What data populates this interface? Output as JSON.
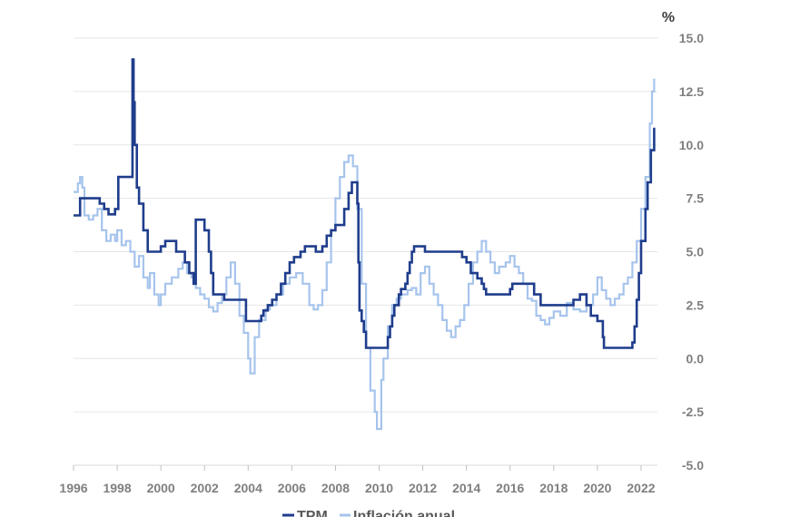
{
  "chart_data": {
    "type": "line",
    "y_unit": "%",
    "xlim": [
      1996,
      2022.75
    ],
    "ylim": [
      -5,
      15
    ],
    "x_ticks": [
      "1996",
      "1998",
      "2000",
      "2002",
      "2004",
      "2006",
      "2008",
      "2010",
      "2012",
      "2014",
      "2016",
      "2018",
      "2020",
      "2022"
    ],
    "y_ticks": [
      "15.0",
      "12.5",
      "10.0",
      "7.5",
      "5.0",
      "2.5",
      "0.0",
      "-2.5",
      "-5.0"
    ],
    "grid": "horizontal",
    "legend_position": "bottom",
    "series": [
      {
        "name": "TPM",
        "color": "#1f3d8c",
        "step": true,
        "points": [
          [
            1996.0,
            6.7
          ],
          [
            1996.3,
            7.5
          ],
          [
            1997.0,
            7.5
          ],
          [
            1997.2,
            7.25
          ],
          [
            1997.4,
            7.0
          ],
          [
            1997.6,
            6.75
          ],
          [
            1997.9,
            7.0
          ],
          [
            1998.05,
            8.5
          ],
          [
            1998.7,
            14.0
          ],
          [
            1998.75,
            12.0
          ],
          [
            1998.8,
            10.0
          ],
          [
            1998.9,
            8.0
          ],
          [
            1999.0,
            7.25
          ],
          [
            1999.2,
            6.0
          ],
          [
            1999.4,
            5.0
          ],
          [
            1999.6,
            5.0
          ],
          [
            2000.0,
            5.25
          ],
          [
            2000.2,
            5.5
          ],
          [
            2000.7,
            5.0
          ],
          [
            2001.1,
            4.5
          ],
          [
            2001.3,
            4.0
          ],
          [
            2001.5,
            3.5
          ],
          [
            2001.6,
            6.5
          ],
          [
            2002.0,
            6.0
          ],
          [
            2002.2,
            5.0
          ],
          [
            2002.3,
            4.0
          ],
          [
            2002.4,
            3.0
          ],
          [
            2002.6,
            3.0
          ],
          [
            2002.9,
            2.75
          ],
          [
            2003.9,
            1.75
          ],
          [
            2004.6,
            2.0
          ],
          [
            2004.7,
            2.25
          ],
          [
            2004.9,
            2.5
          ],
          [
            2005.1,
            2.75
          ],
          [
            2005.3,
            3.0
          ],
          [
            2005.5,
            3.5
          ],
          [
            2005.7,
            4.0
          ],
          [
            2005.9,
            4.5
          ],
          [
            2006.1,
            4.75
          ],
          [
            2006.4,
            5.0
          ],
          [
            2006.6,
            5.25
          ],
          [
            2007.1,
            5.0
          ],
          [
            2007.4,
            5.25
          ],
          [
            2007.6,
            5.75
          ],
          [
            2007.8,
            6.0
          ],
          [
            2008.0,
            6.25
          ],
          [
            2008.4,
            7.0
          ],
          [
            2008.6,
            7.75
          ],
          [
            2008.75,
            8.25
          ],
          [
            2009.0,
            7.25
          ],
          [
            2009.05,
            4.5
          ],
          [
            2009.1,
            2.25
          ],
          [
            2009.2,
            1.75
          ],
          [
            2009.3,
            1.25
          ],
          [
            2009.4,
            0.5
          ],
          [
            2010.4,
            1.0
          ],
          [
            2010.5,
            1.5
          ],
          [
            2010.6,
            2.0
          ],
          [
            2010.7,
            2.5
          ],
          [
            2010.9,
            3.0
          ],
          [
            2011.0,
            3.25
          ],
          [
            2011.2,
            3.5
          ],
          [
            2011.3,
            4.0
          ],
          [
            2011.4,
            4.5
          ],
          [
            2011.5,
            5.0
          ],
          [
            2011.6,
            5.25
          ],
          [
            2012.1,
            5.0
          ],
          [
            2013.8,
            4.75
          ],
          [
            2014.0,
            4.5
          ],
          [
            2014.2,
            4.0
          ],
          [
            2014.5,
            3.75
          ],
          [
            2014.7,
            3.5
          ],
          [
            2014.8,
            3.25
          ],
          [
            2014.9,
            3.0
          ],
          [
            2016.0,
            3.25
          ],
          [
            2016.1,
            3.5
          ],
          [
            2017.1,
            3.0
          ],
          [
            2017.4,
            2.5
          ],
          [
            2018.9,
            2.75
          ],
          [
            2019.2,
            3.0
          ],
          [
            2019.5,
            2.5
          ],
          [
            2019.7,
            2.0
          ],
          [
            2020.0,
            1.75
          ],
          [
            2020.25,
            1.0
          ],
          [
            2020.3,
            0.5
          ],
          [
            2021.6,
            0.75
          ],
          [
            2021.7,
            1.5
          ],
          [
            2021.8,
            2.75
          ],
          [
            2021.9,
            4.0
          ],
          [
            2022.0,
            5.5
          ],
          [
            2022.2,
            7.0
          ],
          [
            2022.3,
            8.25
          ],
          [
            2022.45,
            9.75
          ],
          [
            2022.6,
            10.75
          ],
          [
            2022.65,
            10.75
          ]
        ]
      },
      {
        "name": "Inflación anual",
        "color": "#a6c4ec",
        "step": true,
        "points": [
          [
            1996.0,
            7.8
          ],
          [
            1996.2,
            8.2
          ],
          [
            1996.3,
            8.5
          ],
          [
            1996.4,
            8.0
          ],
          [
            1996.5,
            6.7
          ],
          [
            1996.7,
            6.5
          ],
          [
            1996.9,
            6.7
          ],
          [
            1997.1,
            7.0
          ],
          [
            1997.3,
            6.0
          ],
          [
            1997.5,
            5.5
          ],
          [
            1997.7,
            5.8
          ],
          [
            1997.9,
            5.5
          ],
          [
            1998.0,
            6.0
          ],
          [
            1998.2,
            5.3
          ],
          [
            1998.4,
            5.5
          ],
          [
            1998.6,
            5.0
          ],
          [
            1998.8,
            4.3
          ],
          [
            1999.0,
            4.8
          ],
          [
            1999.2,
            3.8
          ],
          [
            1999.4,
            3.3
          ],
          [
            1999.5,
            4.0
          ],
          [
            1999.7,
            3.0
          ],
          [
            1999.9,
            2.5
          ],
          [
            2000.0,
            3.0
          ],
          [
            2000.2,
            3.5
          ],
          [
            2000.5,
            3.8
          ],
          [
            2000.8,
            4.2
          ],
          [
            2001.0,
            4.5
          ],
          [
            2001.2,
            4.0
          ],
          [
            2001.4,
            3.8
          ],
          [
            2001.6,
            3.3
          ],
          [
            2001.8,
            3.0
          ],
          [
            2002.0,
            2.8
          ],
          [
            2002.2,
            2.4
          ],
          [
            2002.4,
            2.2
          ],
          [
            2002.6,
            2.6
          ],
          [
            2002.8,
            3.0
          ],
          [
            2003.0,
            3.8
          ],
          [
            2003.2,
            4.5
          ],
          [
            2003.4,
            3.5
          ],
          [
            2003.6,
            2.0
          ],
          [
            2003.8,
            1.2
          ],
          [
            2004.0,
            0.0
          ],
          [
            2004.1,
            -0.7
          ],
          [
            2004.3,
            1.0
          ],
          [
            2004.5,
            1.8
          ],
          [
            2004.8,
            2.3
          ],
          [
            2005.0,
            2.5
          ],
          [
            2005.3,
            3.0
          ],
          [
            2005.6,
            3.5
          ],
          [
            2005.9,
            3.8
          ],
          [
            2006.2,
            4.0
          ],
          [
            2006.5,
            3.5
          ],
          [
            2006.8,
            2.5
          ],
          [
            2007.0,
            2.3
          ],
          [
            2007.2,
            2.5
          ],
          [
            2007.4,
            3.2
          ],
          [
            2007.6,
            4.5
          ],
          [
            2007.8,
            6.0
          ],
          [
            2008.0,
            7.5
          ],
          [
            2008.2,
            8.5
          ],
          [
            2008.4,
            9.2
          ],
          [
            2008.6,
            9.5
          ],
          [
            2008.8,
            9.0
          ],
          [
            2009.0,
            7.0
          ],
          [
            2009.2,
            3.5
          ],
          [
            2009.4,
            0.5
          ],
          [
            2009.6,
            -1.5
          ],
          [
            2009.8,
            -2.5
          ],
          [
            2009.9,
            -3.3
          ],
          [
            2010.1,
            -1.0
          ],
          [
            2010.2,
            0.0
          ],
          [
            2010.4,
            1.5
          ],
          [
            2010.6,
            2.5
          ],
          [
            2010.8,
            2.8
          ],
          [
            2011.0,
            3.0
          ],
          [
            2011.3,
            3.2
          ],
          [
            2011.5,
            3.3
          ],
          [
            2011.7,
            3.0
          ],
          [
            2011.9,
            4.0
          ],
          [
            2012.1,
            4.3
          ],
          [
            2012.3,
            3.5
          ],
          [
            2012.5,
            3.0
          ],
          [
            2012.7,
            2.5
          ],
          [
            2012.9,
            1.8
          ],
          [
            2013.1,
            1.3
          ],
          [
            2013.3,
            1.0
          ],
          [
            2013.5,
            1.5
          ],
          [
            2013.7,
            1.8
          ],
          [
            2013.9,
            2.5
          ],
          [
            2014.1,
            3.5
          ],
          [
            2014.3,
            4.5
          ],
          [
            2014.5,
            5.0
          ],
          [
            2014.7,
            5.5
          ],
          [
            2014.9,
            5.0
          ],
          [
            2015.1,
            4.5
          ],
          [
            2015.3,
            4.0
          ],
          [
            2015.5,
            4.3
          ],
          [
            2015.8,
            4.5
          ],
          [
            2016.0,
            4.8
          ],
          [
            2016.2,
            4.3
          ],
          [
            2016.4,
            4.0
          ],
          [
            2016.6,
            3.5
          ],
          [
            2016.8,
            2.8
          ],
          [
            2017.0,
            2.7
          ],
          [
            2017.2,
            2.0
          ],
          [
            2017.4,
            1.8
          ],
          [
            2017.6,
            1.6
          ],
          [
            2017.8,
            1.9
          ],
          [
            2018.0,
            2.2
          ],
          [
            2018.3,
            2.0
          ],
          [
            2018.6,
            2.6
          ],
          [
            2018.9,
            2.3
          ],
          [
            2019.2,
            2.2
          ],
          [
            2019.5,
            2.5
          ],
          [
            2019.8,
            3.0
          ],
          [
            2020.0,
            3.8
          ],
          [
            2020.2,
            3.2
          ],
          [
            2020.4,
            2.8
          ],
          [
            2020.6,
            2.5
          ],
          [
            2020.8,
            2.8
          ],
          [
            2021.0,
            3.0
          ],
          [
            2021.2,
            3.5
          ],
          [
            2021.4,
            3.8
          ],
          [
            2021.6,
            4.5
          ],
          [
            2021.8,
            5.5
          ],
          [
            2022.0,
            7.0
          ],
          [
            2022.2,
            8.5
          ],
          [
            2022.4,
            11.0
          ],
          [
            2022.5,
            12.5
          ],
          [
            2022.6,
            13.1
          ]
        ]
      }
    ]
  }
}
